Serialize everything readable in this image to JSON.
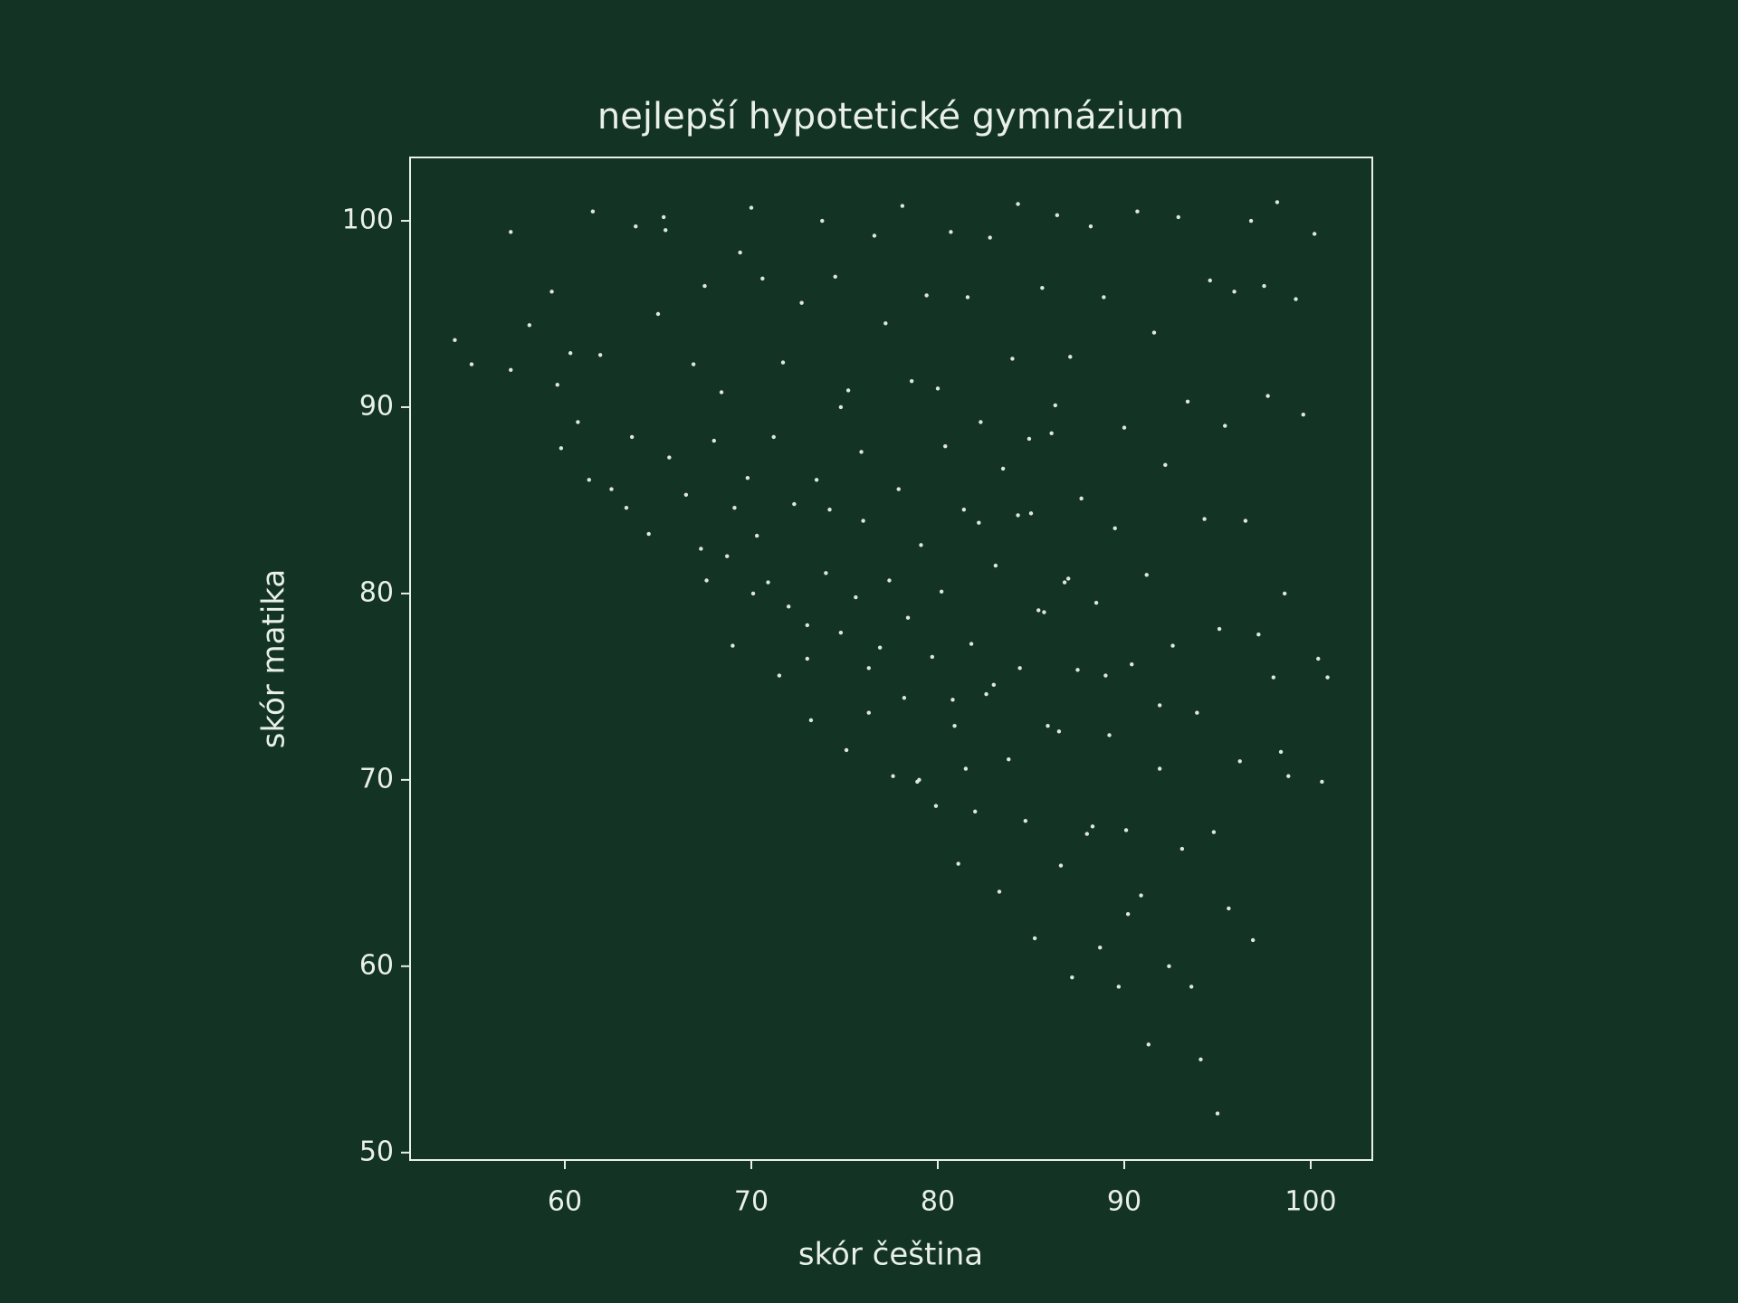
{
  "chart_data": {
    "type": "scatter",
    "title": "nejlepší hypotetické gymnázium",
    "xlabel": "skór čeština",
    "ylabel": "skór matika",
    "xlim": [
      51.7,
      103.3
    ],
    "ylim": [
      49.6,
      103.4
    ],
    "xticks": [
      60,
      70,
      80,
      90,
      100
    ],
    "yticks": [
      50,
      60,
      70,
      80,
      90,
      100
    ],
    "color": "#dde8dd",
    "x": [
      54.1,
      55.0,
      57.1,
      57.1,
      58.1,
      59.3,
      59.6,
      59.8,
      60.3,
      60.7,
      61.3,
      61.5,
      61.9,
      62.5,
      63.3,
      63.6,
      63.8,
      64.5,
      65.0,
      65.3,
      65.4,
      65.6,
      66.5,
      66.9,
      67.3,
      67.5,
      67.6,
      68.0,
      68.4,
      68.7,
      69.0,
      69.1,
      69.4,
      69.8,
      70.0,
      70.1,
      70.3,
      70.6,
      70.9,
      71.2,
      71.5,
      71.7,
      72.0,
      72.3,
      72.7,
      73.0,
      73.2,
      73.5,
      73.8,
      74.0,
      74.2,
      74.5,
      74.8,
      75.1,
      75.2,
      75.6,
      75.9,
      76.0,
      76.3,
      76.6,
      76.9,
      77.2,
      77.4,
      77.6,
      77.9,
      78.1,
      78.2,
      78.6,
      78.9,
      79.1,
      79.4,
      79.7,
      79.9,
      80.2,
      80.4,
      80.7,
      80.9,
      81.1,
      81.4,
      81.6,
      81.8,
      82.0,
      82.3,
      82.6,
      82.8,
      83.1,
      83.3,
      83.5,
      83.8,
      84.0,
      84.3,
      84.4,
      84.7,
      85.0,
      85.2,
      85.4,
      85.6,
      85.9,
      86.1,
      86.4,
      86.6,
      86.8,
      87.1,
      87.2,
      87.5,
      87.7,
      88.0,
      88.2,
      88.5,
      88.7,
      88.9,
      89.2,
      89.5,
      89.7,
      90.0,
      90.1,
      90.4,
      90.7,
      90.9,
      91.2,
      91.3,
      91.6,
      91.9,
      92.2,
      92.4,
      92.6,
      92.9,
      93.1,
      93.4,
      93.6,
      93.9,
      94.1,
      94.3,
      94.6,
      94.8,
      95.0,
      95.1,
      95.4,
      95.6,
      95.9,
      96.2,
      96.5,
      96.8,
      96.9,
      97.2,
      97.5,
      97.7,
      98.0,
      98.2,
      98.4,
      98.6,
      98.8,
      99.2,
      99.6,
      100.2,
      100.4,
      100.6,
      100.9,
      85.7,
      87.0,
      83.0,
      81.5,
      79.0,
      86.5,
      88.3,
      90.2,
      84.3,
      76.3,
      73.0,
      82.2,
      89.0,
      78.4,
      80.8,
      91.9,
      84.9,
      86.3,
      80.0,
      74.8
    ],
    "values": [
      93.6,
      92.3,
      99.4,
      92.0,
      94.4,
      96.2,
      91.2,
      87.8,
      92.9,
      89.2,
      86.1,
      100.5,
      92.8,
      85.6,
      84.6,
      88.4,
      99.7,
      83.2,
      95.0,
      100.2,
      99.5,
      87.3,
      85.3,
      92.3,
      82.4,
      96.5,
      80.7,
      88.2,
      90.8,
      82.0,
      77.2,
      84.6,
      98.3,
      86.2,
      100.7,
      80.0,
      83.1,
      96.9,
      80.6,
      88.4,
      75.6,
      92.4,
      79.3,
      84.8,
      95.6,
      76.5,
      73.2,
      86.1,
      100.0,
      81.1,
      84.5,
      97.0,
      77.9,
      71.6,
      90.9,
      79.8,
      87.6,
      83.9,
      73.6,
      99.2,
      77.1,
      94.5,
      80.7,
      70.2,
      85.6,
      100.8,
      74.4,
      91.4,
      69.9,
      82.6,
      96.0,
      76.6,
      68.6,
      80.1,
      87.9,
      99.4,
      72.9,
      65.5,
      84.5,
      95.9,
      77.3,
      68.3,
      89.2,
      74.6,
      99.1,
      81.5,
      64.0,
      86.7,
      71.1,
      92.6,
      100.9,
      76.0,
      67.8,
      84.3,
      61.5,
      79.1,
      96.4,
      72.9,
      88.6,
      100.3,
      65.4,
      80.6,
      92.7,
      59.4,
      75.9,
      85.1,
      67.1,
      99.7,
      79.5,
      61.0,
      95.9,
      72.4,
      83.5,
      58.9,
      88.9,
      67.3,
      76.2,
      100.5,
      63.8,
      81.0,
      55.8,
      94.0,
      70.6,
      86.9,
      60.0,
      77.2,
      100.2,
      66.3,
      90.3,
      58.9,
      73.6,
      55.0,
      84.0,
      96.8,
      67.2,
      52.1,
      78.1,
      89.0,
      63.1,
      96.2,
      71.0,
      83.9,
      100.0,
      61.4,
      77.8,
      96.5,
      90.6,
      75.5,
      101.0,
      71.5,
      80.0,
      70.2,
      95.8,
      89.6,
      99.3,
      76.5,
      69.9,
      75.5,
      79.0,
      80.8,
      75.1,
      70.6,
      70.0,
      72.6,
      67.5,
      62.8,
      84.2,
      76.0,
      78.3,
      83.8,
      75.6,
      78.7,
      74.3,
      74.0,
      88.3,
      90.1,
      91.0,
      90.0
    ]
  }
}
